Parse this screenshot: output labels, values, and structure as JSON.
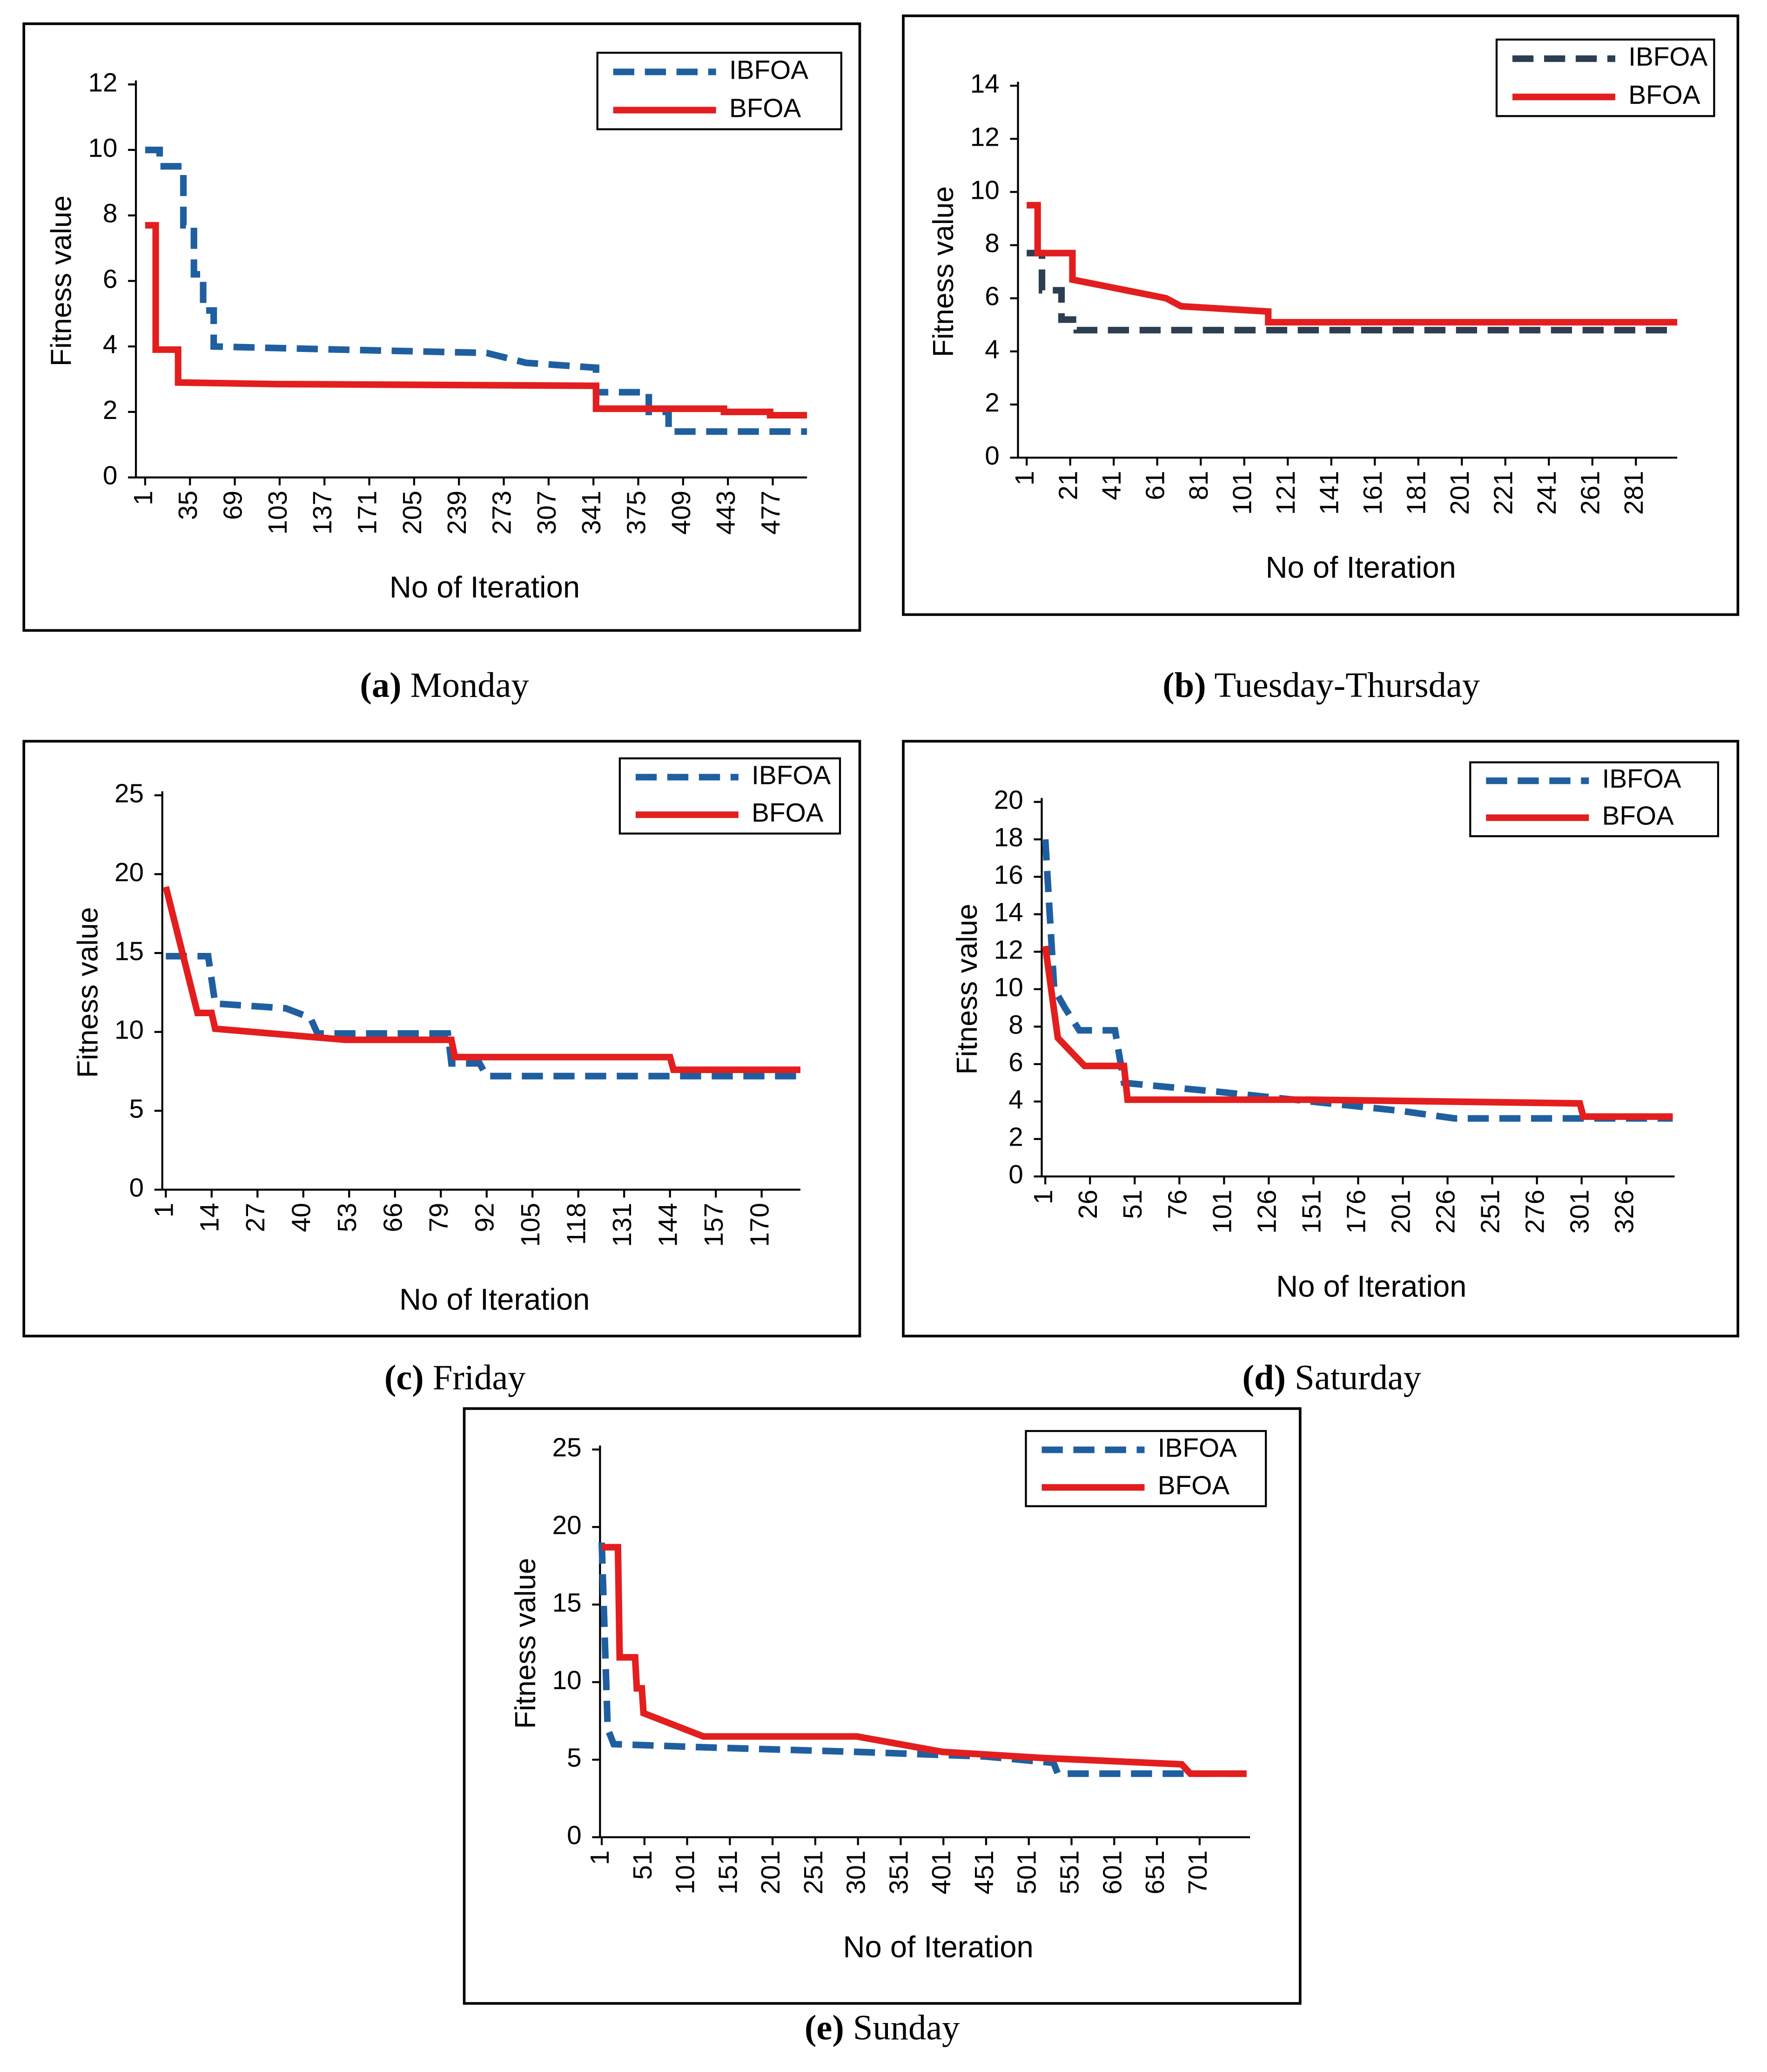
{
  "chart_data": [
    {
      "type": "line",
      "caption": "(a) Monday",
      "xlabel": "No of Iteration",
      "ylabel": "Fitness value",
      "xlim": [
        -6,
        503
      ],
      "xticks": [
        1,
        35,
        69,
        103,
        137,
        171,
        205,
        239,
        273,
        307,
        341,
        375,
        409,
        443,
        477
      ],
      "ylim": [
        0,
        12
      ],
      "yticks": [
        0,
        2,
        4,
        6,
        8,
        10,
        12
      ],
      "legend": "top right",
      "series": [
        {
          "name": "IBFOA",
          "color": "#1f5fa0",
          "dashed": true,
          "x": [
            1,
            12,
            12,
            30,
            30,
            38,
            38,
            45,
            45,
            53,
            53,
            150,
            260,
            290,
            343,
            343,
            383,
            383,
            398,
            398,
            503
          ],
          "values": [
            10,
            10,
            9.5,
            9.5,
            7.7,
            7.7,
            6.2,
            6.2,
            5.1,
            5.1,
            4,
            3.9,
            3.8,
            3.5,
            3.35,
            2.6,
            2.6,
            2.0,
            2.0,
            1.4,
            1.4
          ]
        },
        {
          "name": "BFOA",
          "color": "#e31e1e",
          "dashed": false,
          "x": [
            1,
            9,
            9,
            26,
            26,
            100,
            343,
            343,
            440,
            440,
            475,
            475,
            503
          ],
          "values": [
            7.7,
            7.7,
            3.9,
            3.9,
            2.9,
            2.85,
            2.8,
            2.1,
            2.1,
            2.0,
            2.0,
            1.9,
            1.9
          ]
        }
      ]
    },
    {
      "type": "line",
      "caption": "(b) Tuesday-Thursday",
      "xlabel": "No of Iteration",
      "ylabel": "Fitness value",
      "xlim": [
        -3,
        300
      ],
      "xticks": [
        1,
        21,
        41,
        61,
        81,
        101,
        121,
        141,
        161,
        181,
        201,
        221,
        241,
        261,
        281
      ],
      "ylim": [
        0,
        14
      ],
      "yticks": [
        0,
        2,
        4,
        6,
        8,
        10,
        12,
        14
      ],
      "legend": "top right",
      "series": [
        {
          "name": "IBFOA",
          "color": "#2d3e50",
          "dashed": true,
          "x": [
            1,
            8,
            8,
            17,
            17,
            24,
            24,
            300
          ],
          "values": [
            7.7,
            7.7,
            6.3,
            6.3,
            5.2,
            5.2,
            4.8,
            4.8
          ]
        },
        {
          "name": "BFOA",
          "color": "#e31e1e",
          "dashed": false,
          "x": [
            1,
            6,
            6,
            22,
            22,
            65,
            72,
            112,
            112,
            300
          ],
          "values": [
            9.5,
            9.5,
            7.7,
            7.7,
            6.7,
            6.0,
            5.7,
            5.5,
            5.1,
            5.1
          ]
        }
      ]
    },
    {
      "type": "line",
      "caption": "(c) Friday",
      "xlabel": "No of Iteration",
      "ylabel": "Fitness value",
      "xlim": [
        0,
        181
      ],
      "xticks": [
        1,
        14,
        27,
        40,
        53,
        66,
        79,
        92,
        105,
        118,
        131,
        144,
        157,
        170
      ],
      "ylim": [
        0,
        25
      ],
      "yticks": [
        0,
        5,
        10,
        15,
        20,
        25
      ],
      "legend": "top right",
      "series": [
        {
          "name": "IBFOA",
          "color": "#1f5fa0",
          "dashed": true,
          "x": [
            1,
            13,
            15,
            35,
            42,
            44,
            81,
            82,
            90,
            92,
            181
          ],
          "values": [
            14.8,
            14.8,
            11.8,
            11.5,
            10.9,
            9.9,
            9.9,
            8.0,
            8.0,
            7.2,
            7.2
          ]
        },
        {
          "name": "BFOA",
          "color": "#e31e1e",
          "dashed": false,
          "x": [
            1,
            10,
            14,
            15,
            52,
            82,
            83,
            144,
            145,
            181
          ],
          "values": [
            19.2,
            11.2,
            11.2,
            10.2,
            9.5,
            9.5,
            8.4,
            8.4,
            7.6,
            7.6
          ]
        }
      ]
    },
    {
      "type": "line",
      "caption": "(d) Saturday",
      "xlabel": "No of Iteration",
      "ylabel": "Fitness value",
      "xlim": [
        -1,
        353
      ],
      "xticks": [
        1,
        26,
        51,
        76,
        101,
        126,
        151,
        176,
        201,
        226,
        251,
        276,
        301,
        326
      ],
      "ylim": [
        0,
        20
      ],
      "yticks": [
        0,
        2,
        4,
        6,
        8,
        10,
        12,
        14,
        16,
        18,
        20
      ],
      "legend": "top right",
      "series": [
        {
          "name": "IBFOA",
          "color": "#1f5fa0",
          "dashed": true,
          "x": [
            1,
            6,
            12,
            20,
            40,
            45,
            100,
            150,
            200,
            230,
            352
          ],
          "values": [
            18,
            10,
            9,
            7.8,
            7.8,
            5,
            4.5,
            4,
            3.5,
            3.1,
            3.1
          ]
        },
        {
          "name": "BFOA",
          "color": "#e31e1e",
          "dashed": false,
          "x": [
            1,
            8,
            23,
            45,
            47,
            150,
            300,
            302,
            352
          ],
          "values": [
            12.3,
            7.4,
            5.9,
            5.9,
            4.1,
            4.1,
            3.9,
            3.2,
            3.2
          ]
        }
      ]
    },
    {
      "type": "line",
      "caption": "(e) Sunday",
      "xlabel": "No of Iteration",
      "ylabel": "Fitness value",
      "xlim": [
        -1,
        760
      ],
      "xticks": [
        1,
        51,
        101,
        151,
        201,
        251,
        301,
        351,
        401,
        451,
        501,
        551,
        601,
        651,
        701
      ],
      "ylim": [
        0,
        25
      ],
      "yticks": [
        0,
        5,
        10,
        15,
        20,
        25
      ],
      "legend": "top right",
      "series": [
        {
          "name": "IBFOA",
          "color": "#1f5fa0",
          "dashed": true,
          "x": [
            1,
            8,
            15,
            120,
            300,
            450,
            530,
            535,
            756
          ],
          "values": [
            19,
            7,
            6,
            5.8,
            5.5,
            5.2,
            4.8,
            4.1,
            4.1
          ]
        },
        {
          "name": "BFOA",
          "color": "#e31e1e",
          "dashed": false,
          "x": [
            1,
            10,
            20,
            22,
            40,
            42,
            48,
            50,
            120,
            300,
            400,
            520,
            680,
            690,
            756
          ],
          "values": [
            18.7,
            18.7,
            18.7,
            11.6,
            11.6,
            9.6,
            9.6,
            8,
            6.5,
            6.5,
            5.5,
            5.1,
            4.7,
            4.1,
            4.1
          ]
        }
      ]
    }
  ]
}
